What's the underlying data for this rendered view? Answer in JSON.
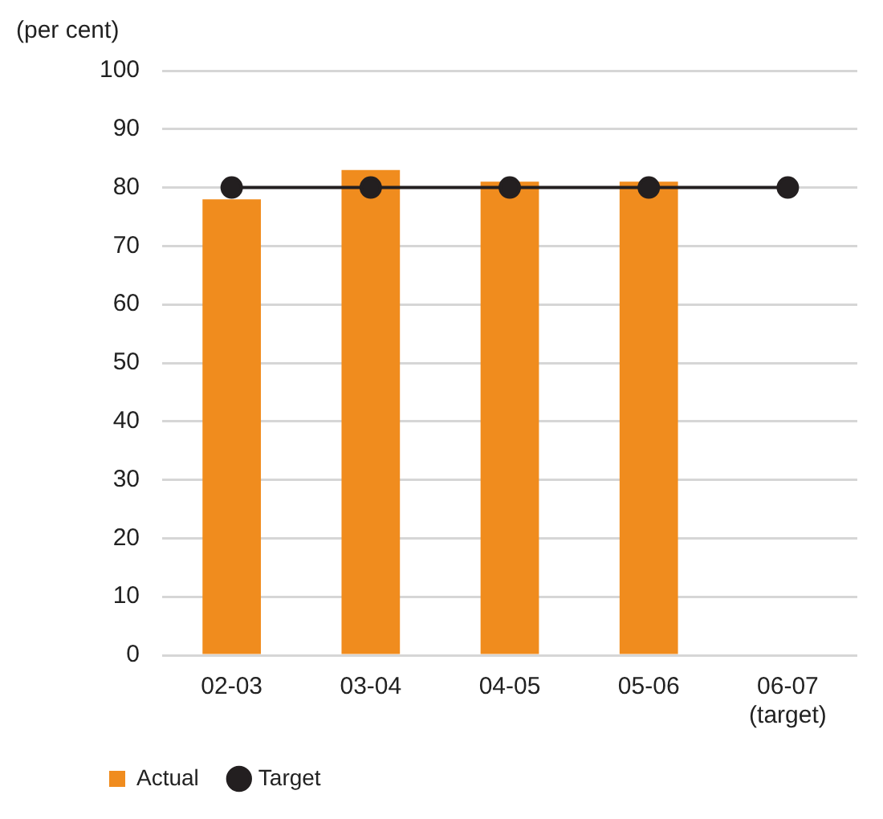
{
  "chart_data": {
    "type": "bar",
    "ylabel": "(per cent)",
    "categories": [
      "02-03",
      "03-04",
      "04-05",
      "05-06",
      "06-07 (target)"
    ],
    "series": [
      {
        "name": "Actual",
        "color": "#f08c1e",
        "values": [
          78,
          83,
          81,
          81,
          null
        ]
      },
      {
        "name": "Target",
        "type": "line",
        "color": "#231f20",
        "values": [
          80,
          80,
          80,
          80,
          80
        ],
        "marker": "circle",
        "line_style": "solid"
      }
    ],
    "ylim": [
      0,
      100
    ],
    "yticks": [
      0,
      10,
      20,
      30,
      40,
      50,
      60,
      70,
      80,
      90,
      100
    ],
    "grid": "y",
    "legend": "bottom left"
  }
}
